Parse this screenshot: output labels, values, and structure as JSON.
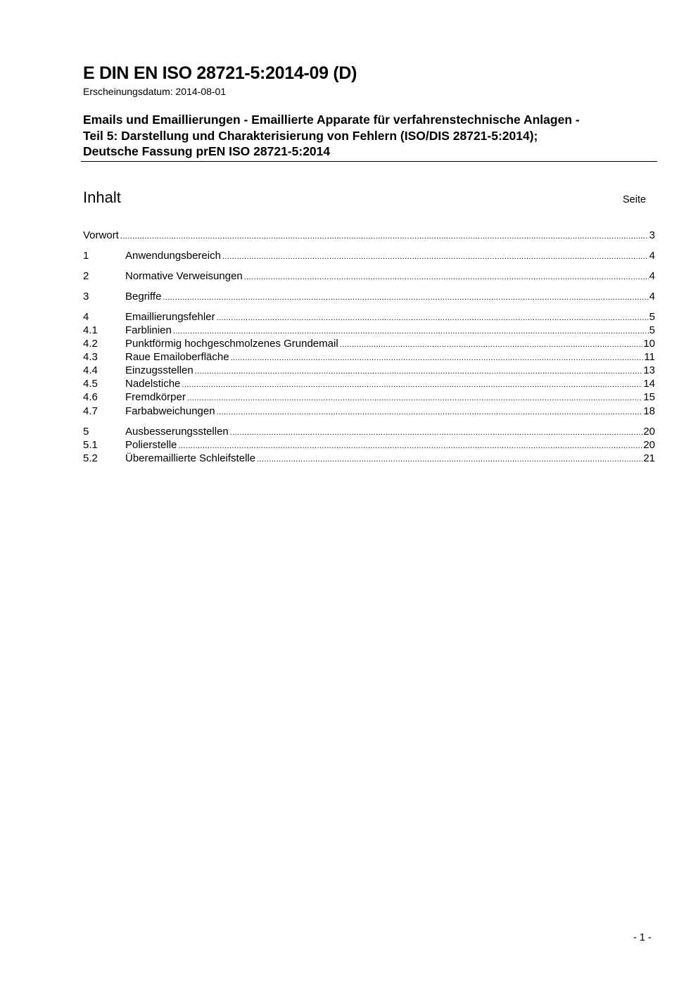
{
  "document": {
    "title": "E DIN EN ISO 28721-5:2014-09 (D)",
    "publication_date": "Erscheinungsdatum: 2014-08-01",
    "heading_lines": [
      "Emails und Emaillierungen - Emaillierte Apparate für verfahrenstechnische Anlagen -",
      "Teil 5: Darstellung und Charakterisierung von Fehlern (ISO/DIS 28721-5:2014);",
      "Deutsche Fassung prEN ISO 28721-5:2014"
    ]
  },
  "toc": {
    "title": "Inhalt",
    "page_column_label": "Seite",
    "entries": [
      {
        "number": "",
        "label": "Vorwort",
        "page": "3"
      },
      {
        "number": "1",
        "label": "Anwendungsbereich",
        "page": "4"
      },
      {
        "number": "2",
        "label": "Normative Verweisungen",
        "page": "4"
      },
      {
        "number": "3",
        "label": "Begriffe",
        "page": "4"
      },
      {
        "number": "4",
        "label": "Emaillierungsfehler",
        "page": "5"
      },
      {
        "number": "4.1",
        "label": "Farblinien",
        "page": "5"
      },
      {
        "number": "4.2",
        "label": "Punktförmig hochgeschmolzenes Grundemail",
        "page": "10"
      },
      {
        "number": "4.3",
        "label": "Raue Emailoberfläche",
        "page": "11"
      },
      {
        "number": "4.4",
        "label": "Einzugsstellen",
        "page": "13"
      },
      {
        "number": "4.5",
        "label": "Nadelstiche",
        "page": "14"
      },
      {
        "number": "4.6",
        "label": "Fremdkörper",
        "page": "15"
      },
      {
        "number": "4.7",
        "label": "Farbabweichungen",
        "page": "18"
      },
      {
        "number": "5",
        "label": "Ausbesserungsstellen",
        "page": "20"
      },
      {
        "number": "5.1",
        "label": "Polierstelle",
        "page": "20"
      },
      {
        "number": "5.2",
        "label": "Überemaillierte Schleifstelle",
        "page": "21"
      }
    ]
  },
  "footer": {
    "page_number": "- 1 -"
  }
}
